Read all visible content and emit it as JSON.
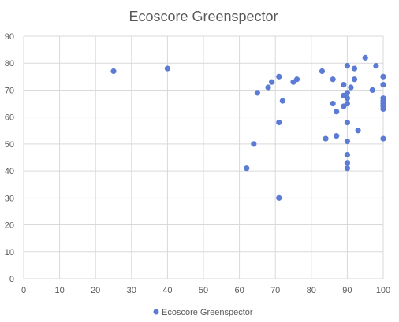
{
  "chart_data": {
    "type": "scatter",
    "title": "Ecoscore Greenspector",
    "xlabel": "",
    "ylabel": "",
    "xlim": [
      0,
      100
    ],
    "ylim": [
      0,
      90
    ],
    "x_ticks": [
      0,
      10,
      20,
      30,
      40,
      50,
      60,
      70,
      80,
      90,
      100
    ],
    "y_ticks": [
      0,
      10,
      20,
      30,
      40,
      50,
      60,
      70,
      80,
      90
    ],
    "grid": true,
    "legend_position": "bottom",
    "series": [
      {
        "name": "Ecoscore Greenspector",
        "color": "#5B7BD5",
        "points": [
          [
            25,
            77
          ],
          [
            40,
            78
          ],
          [
            62,
            41
          ],
          [
            64,
            50
          ],
          [
            65,
            69
          ],
          [
            68,
            71
          ],
          [
            69,
            73
          ],
          [
            71,
            75
          ],
          [
            71,
            58
          ],
          [
            71,
            30
          ],
          [
            72,
            66
          ],
          [
            75,
            73
          ],
          [
            76,
            74
          ],
          [
            83,
            77
          ],
          [
            84,
            52
          ],
          [
            86,
            74
          ],
          [
            86,
            65
          ],
          [
            87,
            62
          ],
          [
            87,
            53
          ],
          [
            89,
            72
          ],
          [
            89,
            68
          ],
          [
            89,
            64
          ],
          [
            90,
            79
          ],
          [
            90,
            69
          ],
          [
            90,
            67
          ],
          [
            90,
            65
          ],
          [
            90,
            58
          ],
          [
            90,
            51
          ],
          [
            90,
            46
          ],
          [
            90,
            43
          ],
          [
            90,
            41
          ],
          [
            91,
            71
          ],
          [
            92,
            78
          ],
          [
            92,
            74
          ],
          [
            93,
            55
          ],
          [
            95,
            82
          ],
          [
            97,
            70
          ],
          [
            98,
            79
          ],
          [
            100,
            75
          ],
          [
            100,
            72
          ],
          [
            100,
            67
          ],
          [
            100,
            66
          ],
          [
            100,
            65
          ],
          [
            100,
            64
          ],
          [
            100,
            63
          ],
          [
            100,
            52
          ]
        ]
      }
    ]
  }
}
